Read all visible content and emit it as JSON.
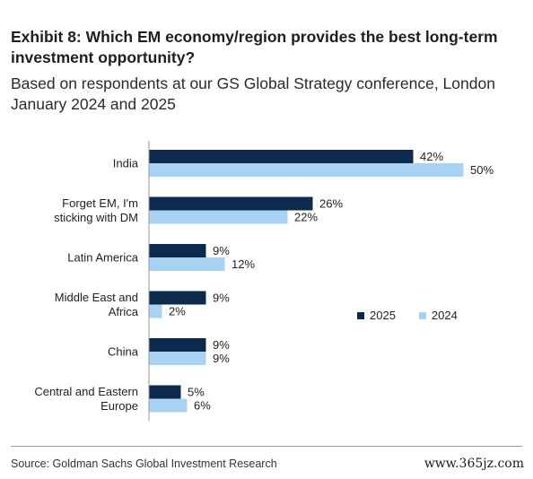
{
  "header": {
    "title": "Exhibit 8: Which EM economy/region provides the best long-term investment opportunity?",
    "subtitle": "Based on respondents at our GS Global Strategy conference, London January 2024 and 2025"
  },
  "footer": {
    "source": "Source: Goldman Sachs Global Investment Research",
    "watermark": "www.365jz.com"
  },
  "colors": {
    "series_2025": "#0d2a4e",
    "series_2024": "#a9d2f2"
  },
  "chart_data": {
    "type": "bar",
    "orientation": "horizontal",
    "categories": [
      [
        "India"
      ],
      [
        "Forget EM, I'm",
        "sticking with DM"
      ],
      [
        "Latin America"
      ],
      [
        "Middle East and",
        "Africa"
      ],
      [
        "China"
      ],
      [
        "Central and Eastern",
        "Europe"
      ]
    ],
    "series": [
      {
        "name": "2025",
        "values": [
          42,
          26,
          9,
          9,
          9,
          5
        ],
        "labels": [
          "42%",
          "26%",
          "9%",
          "9%",
          "9%",
          "5%"
        ]
      },
      {
        "name": "2024",
        "values": [
          50,
          22,
          12,
          2,
          9,
          6
        ],
        "labels": [
          "50%",
          "22%",
          "12%",
          "2%",
          "9%",
          "6%"
        ]
      }
    ],
    "xlim": [
      0,
      50
    ],
    "grid": false,
    "legend_position": "right"
  }
}
